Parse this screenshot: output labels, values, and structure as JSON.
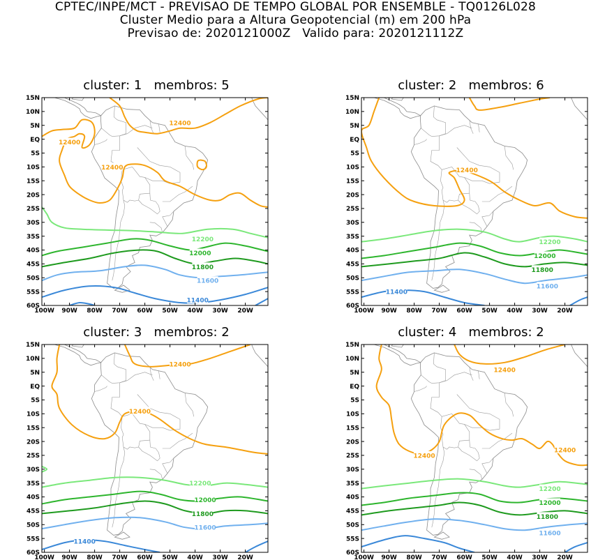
{
  "header": {
    "line1": "CPTEC/INPE/MCT - PREVISAO DE TEMPO GLOBAL POR ENSEMBLE - TQ0126L028",
    "line2": "Cluster Medio para a Altura Geopotencial (m) em 200 hPa",
    "line3": "Previsao de: 2020121000Z   Valido para: 2020121112Z"
  },
  "axes": {
    "lat_labels": [
      "15N",
      "10N",
      "5N",
      "EQ",
      "5S",
      "10S",
      "15S",
      "20S",
      "25S",
      "30S",
      "35S",
      "40S",
      "45S",
      "50S",
      "55S",
      "60S"
    ],
    "lon_labels": [
      "100W",
      "90W",
      "80W",
      "70W",
      "60W",
      "50W",
      "40W",
      "30W",
      "20W"
    ]
  },
  "contour_colors": {
    "12400": "#f5a00f",
    "12200": "#7ae87a",
    "12000": "#2db52d",
    "11800": "#1e9a1e",
    "11600": "#70b0ee",
    "11400": "#3a88d8"
  },
  "panels": [
    {
      "title": "cluster: 1   membros: 5",
      "labels": [
        {
          "text": "12400",
          "lon": -73,
          "lat": -10,
          "color": "#f5a00f"
        },
        {
          "text": "12400",
          "lon": -90,
          "lat": -1,
          "color": "#f5a00f"
        },
        {
          "text": "12400",
          "lon": -46,
          "lat": 6,
          "color": "#f5a00f"
        },
        {
          "text": "12200",
          "lon": -37,
          "lat": -36,
          "color": "#7ae87a"
        },
        {
          "text": "12000",
          "lon": -38,
          "lat": -41,
          "color": "#2db52d"
        },
        {
          "text": "11800",
          "lon": -37,
          "lat": -46,
          "color": "#1e9a1e"
        },
        {
          "text": "11600",
          "lon": -35,
          "lat": -51,
          "color": "#70b0ee"
        },
        {
          "text": "11400",
          "lon": -39,
          "lat": -58,
          "color": "#3a88d8"
        }
      ]
    },
    {
      "title": "cluster: 2   membros: 6",
      "labels": [
        {
          "text": "12400",
          "lon": -59,
          "lat": -11,
          "color": "#f5a00f"
        },
        {
          "text": "12200",
          "lon": -26,
          "lat": -37,
          "color": "#7ae87a"
        },
        {
          "text": "12000",
          "lon": -28,
          "lat": -42,
          "color": "#2db52d"
        },
        {
          "text": "11800",
          "lon": -29,
          "lat": -47,
          "color": "#1e9a1e"
        },
        {
          "text": "11600",
          "lon": -27,
          "lat": -53,
          "color": "#70b0ee"
        },
        {
          "text": "11400",
          "lon": -87,
          "lat": -55,
          "color": "#3a88d8"
        }
      ]
    },
    {
      "title": "cluster: 3   membros: 2",
      "labels": [
        {
          "text": "12400",
          "lon": -46,
          "lat": 8,
          "color": "#f5a00f"
        },
        {
          "text": "12400",
          "lon": -62,
          "lat": -9,
          "color": "#f5a00f"
        },
        {
          "text": "12200",
          "lon": -38,
          "lat": -35,
          "color": "#7ae87a"
        },
        {
          "text": "12000",
          "lon": -36,
          "lat": -41,
          "color": "#2db52d"
        },
        {
          "text": "11800",
          "lon": -37,
          "lat": -46,
          "color": "#1e9a1e"
        },
        {
          "text": "11600",
          "lon": -36,
          "lat": -51,
          "color": "#70b0ee"
        },
        {
          "text": "11400",
          "lon": -84,
          "lat": -56,
          "color": "#3a88d8"
        }
      ]
    },
    {
      "title": "cluster: 4   membros: 2",
      "labels": [
        {
          "text": "12400",
          "lon": -44,
          "lat": 6,
          "color": "#f5a00f"
        },
        {
          "text": "12400",
          "lon": -76,
          "lat": -25,
          "color": "#f5a00f"
        },
        {
          "text": "12400",
          "lon": -20,
          "lat": -23,
          "color": "#f5a00f"
        },
        {
          "text": "12200",
          "lon": -26,
          "lat": -37,
          "color": "#7ae87a"
        },
        {
          "text": "12000",
          "lon": -26,
          "lat": -42,
          "color": "#2db52d"
        },
        {
          "text": "11800",
          "lon": -27,
          "lat": -47,
          "color": "#1e9a1e"
        },
        {
          "text": "11600",
          "lon": -26,
          "lat": -53,
          "color": "#70b0ee"
        }
      ]
    }
  ]
}
